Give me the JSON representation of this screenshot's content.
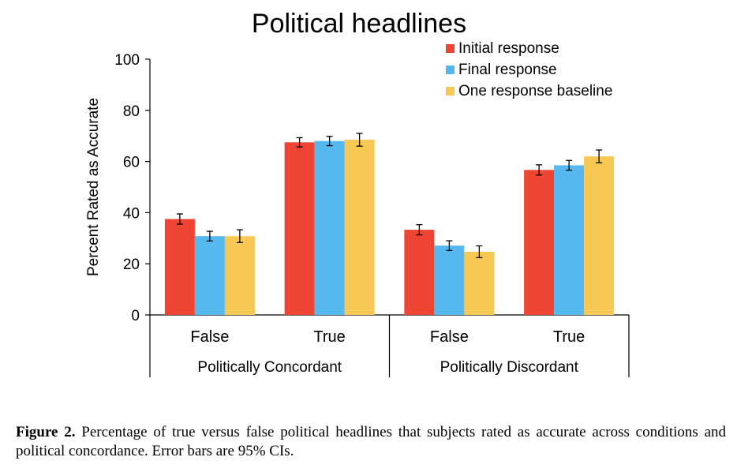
{
  "chart_data": {
    "type": "bar",
    "title": "Political headlines",
    "ylabel": "Percent Rated as Accurate",
    "xlabel": "",
    "ylim": [
      0,
      100
    ],
    "yticks": [
      0,
      20,
      40,
      60,
      80,
      100
    ],
    "grid": false,
    "legend_position": "top-right",
    "groups": [
      {
        "label": "Politically Concordant",
        "categories": [
          "False",
          "True"
        ]
      },
      {
        "label": "Politically Discordant",
        "categories": [
          "False",
          "True"
        ]
      }
    ],
    "categories": [
      "False",
      "True",
      "False",
      "True"
    ],
    "series": [
      {
        "name": "Initial response",
        "color": "#EE4433",
        "values": [
          37.5,
          67.5,
          33.3,
          56.7
        ],
        "ci": [
          2.0,
          1.8,
          2.0,
          2.0
        ]
      },
      {
        "name": "Final response",
        "color": "#55B8EE",
        "values": [
          30.8,
          68.0,
          27.1,
          58.5
        ],
        "ci": [
          1.9,
          1.8,
          1.9,
          1.9
        ]
      },
      {
        "name": "One response baseline",
        "color": "#F8C855",
        "values": [
          30.8,
          68.5,
          24.7,
          62.0
        ],
        "ci": [
          2.5,
          2.5,
          2.3,
          2.5
        ]
      }
    ]
  },
  "caption": {
    "label": "Figure 2.",
    "text": " Percentage of true versus false political headlines that subjects rated as accurate across conditions and political concordance. Error bars are 95% CIs."
  }
}
